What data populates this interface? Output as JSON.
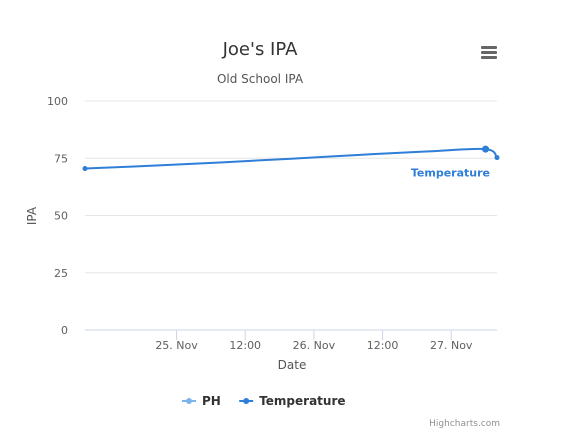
{
  "chart_data": {
    "type": "line",
    "title": "Joe's IPA",
    "subtitle": "Old School IPA",
    "xlabel": "Date",
    "ylabel": "IPA",
    "ylim": [
      0,
      100
    ],
    "yticks": [
      "0",
      "25",
      "50",
      "75",
      "100"
    ],
    "x_axis": {
      "type": "datetime",
      "range": [
        "2016-11-24T08:00",
        "2016-11-27T08:00"
      ],
      "ticks": [
        {
          "label": "25. Nov",
          "t": "2016-11-25T00:00"
        },
        {
          "label": "12:00",
          "t": "2016-11-25T12:00"
        },
        {
          "label": "26. Nov",
          "t": "2016-11-26T00:00"
        },
        {
          "label": "12:00",
          "t": "2016-11-26T12:00"
        },
        {
          "label": "27. Nov",
          "t": "2016-11-27T00:00"
        }
      ]
    },
    "grid": true,
    "legend_placement": "bottom-center",
    "series": [
      {
        "name": "PH",
        "color": "#7cb5ec",
        "points": []
      },
      {
        "name": "Temperature",
        "color": "#2f7ed8",
        "end_label": "Temperature",
        "points": [
          {
            "t": "2016-11-24T08:00",
            "y": 70.5
          },
          {
            "t": "2016-11-24T20:00",
            "y": 71.8
          },
          {
            "t": "2016-11-25T08:00",
            "y": 73.2
          },
          {
            "t": "2016-11-25T20:00",
            "y": 74.8
          },
          {
            "t": "2016-11-26T08:00",
            "y": 76.5
          },
          {
            "t": "2016-11-26T20:00",
            "y": 78.0
          },
          {
            "t": "2016-11-27T06:00",
            "y": 79.0
          },
          {
            "t": "2016-11-27T08:00",
            "y": 75.3
          }
        ]
      }
    ]
  },
  "credits": "Highcharts.com",
  "menu_icon": "hamburger-menu-icon"
}
